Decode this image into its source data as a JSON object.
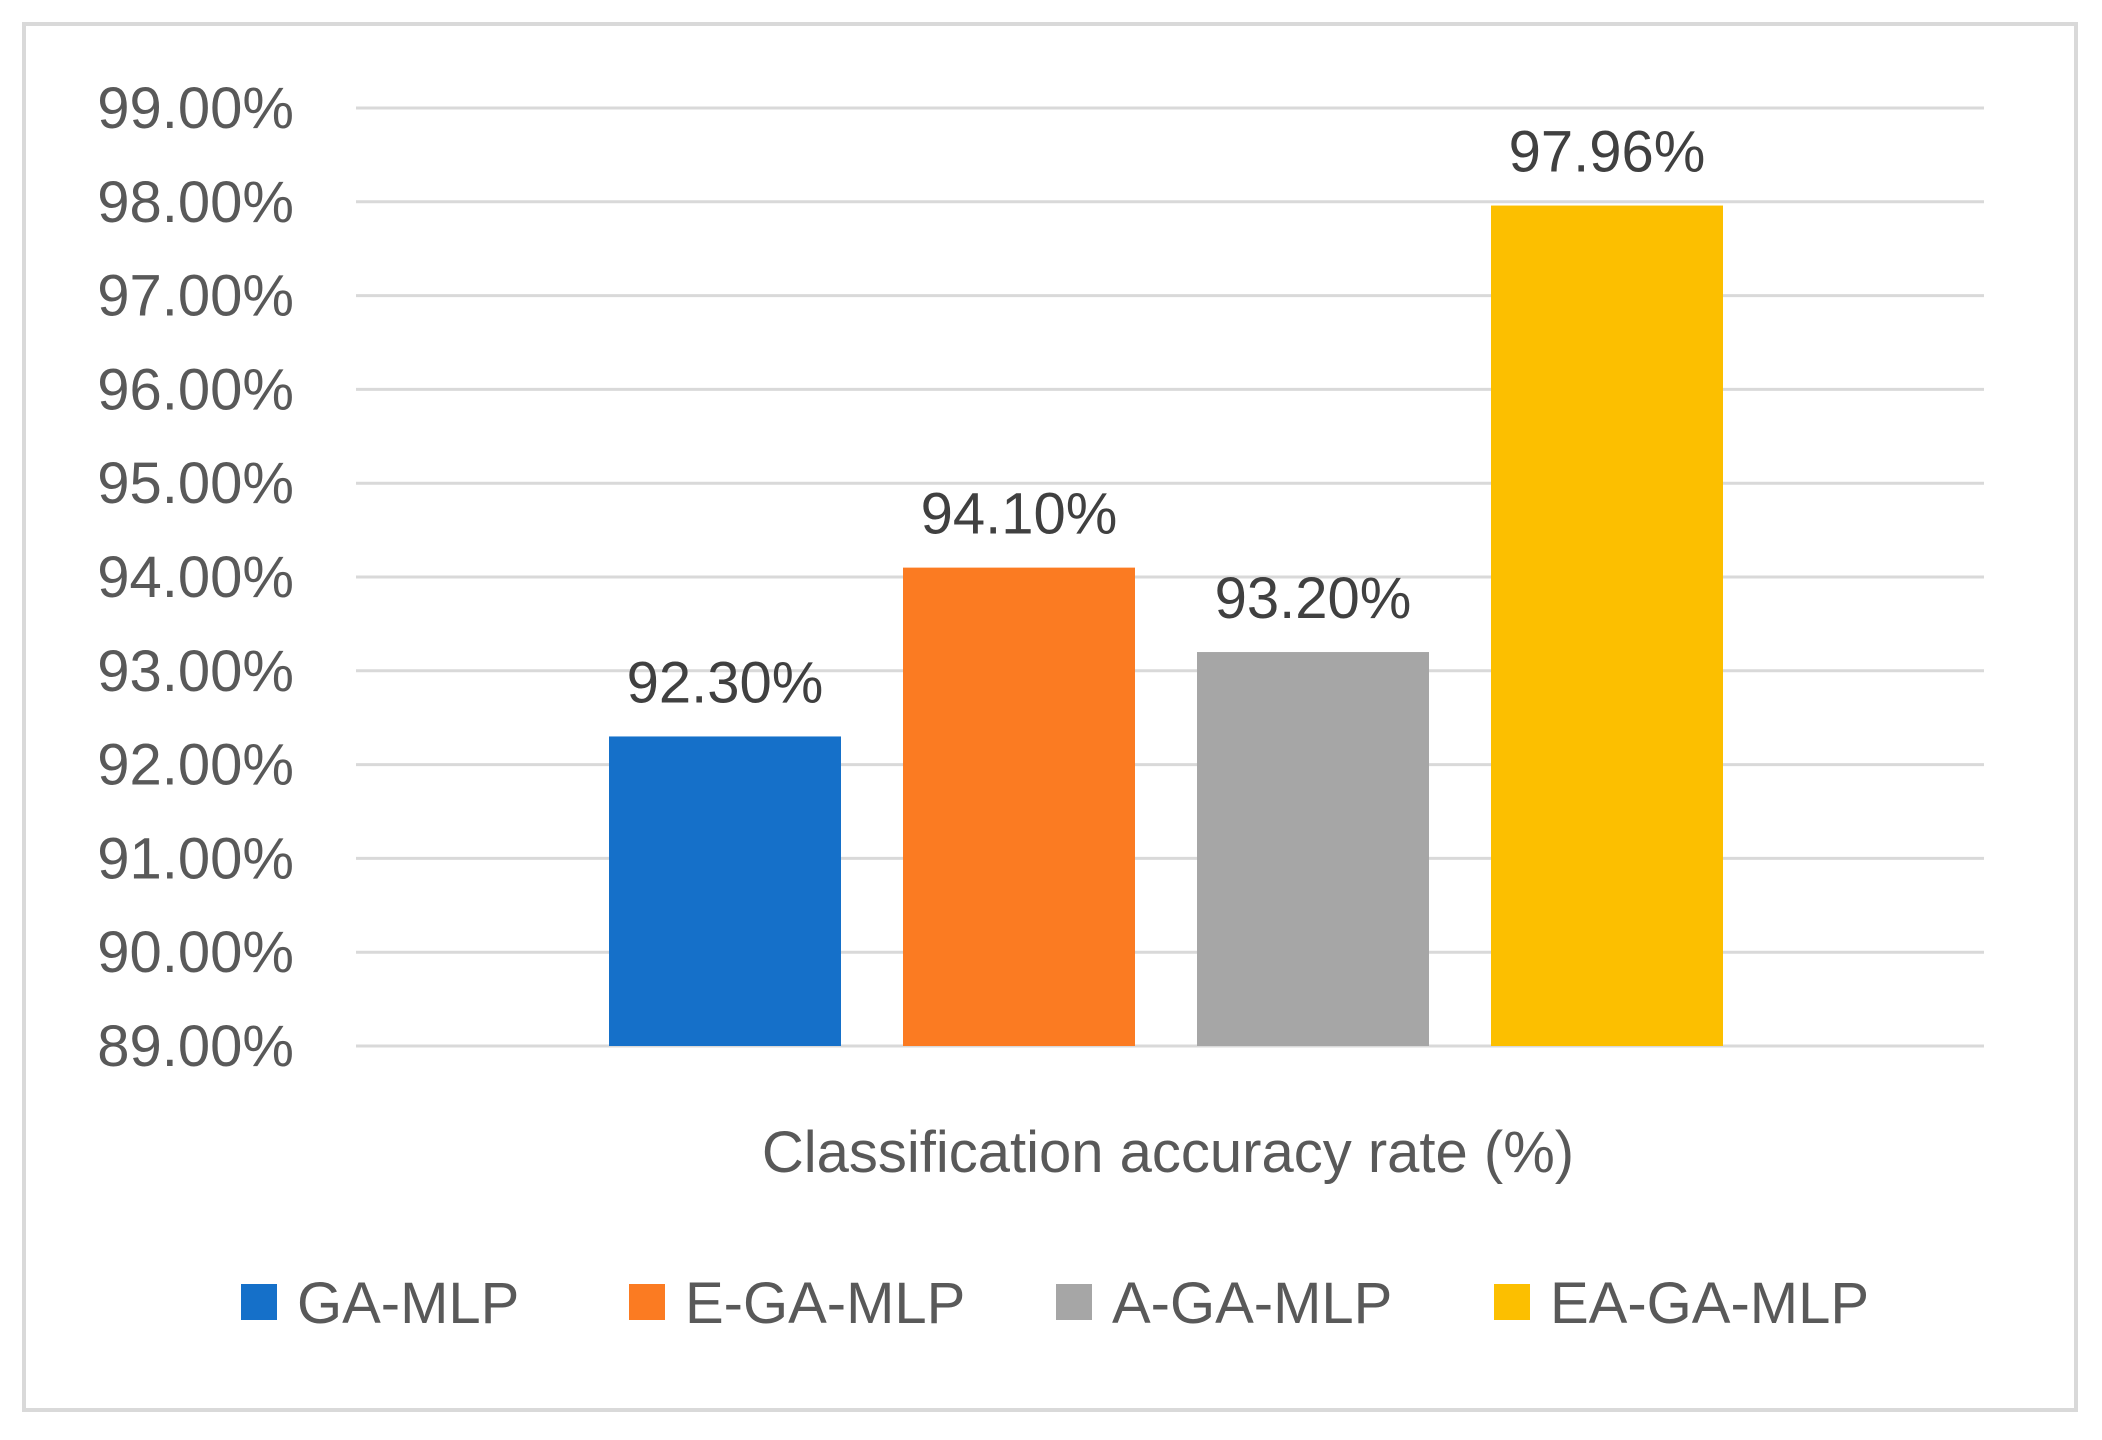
{
  "chart_data": {
    "type": "bar",
    "title": "",
    "categories": [
      "Classification accuracy rate (%)"
    ],
    "xlabel": "Classification accuracy rate (%)",
    "ylabel": "",
    "ylim": [
      89,
      99
    ],
    "ytick_step": 1,
    "yticks": [
      "89.00%",
      "90.00%",
      "91.00%",
      "92.00%",
      "93.00%",
      "94.00%",
      "95.00%",
      "96.00%",
      "97.00%",
      "98.00%",
      "99.00%"
    ],
    "grid": true,
    "legend_position": "bottom",
    "series": [
      {
        "name": "GA-MLP",
        "values": [
          92.3
        ],
        "label": "92.30%",
        "color": "#1570c9"
      },
      {
        "name": "E-GA-MLP",
        "values": [
          94.1
        ],
        "label": "94.10%",
        "color": "#fb7b22"
      },
      {
        "name": "A-GA-MLP",
        "values": [
          93.2
        ],
        "label": "93.20%",
        "color": "#a6a6a6"
      },
      {
        "name": "EA-GA-MLP",
        "values": [
          97.96
        ],
        "label": "97.96%",
        "color": "#fcbf00"
      }
    ],
    "colors": {
      "grid": "#d9d9d9",
      "text": "#595959",
      "border": "#d9d9d9"
    }
  }
}
